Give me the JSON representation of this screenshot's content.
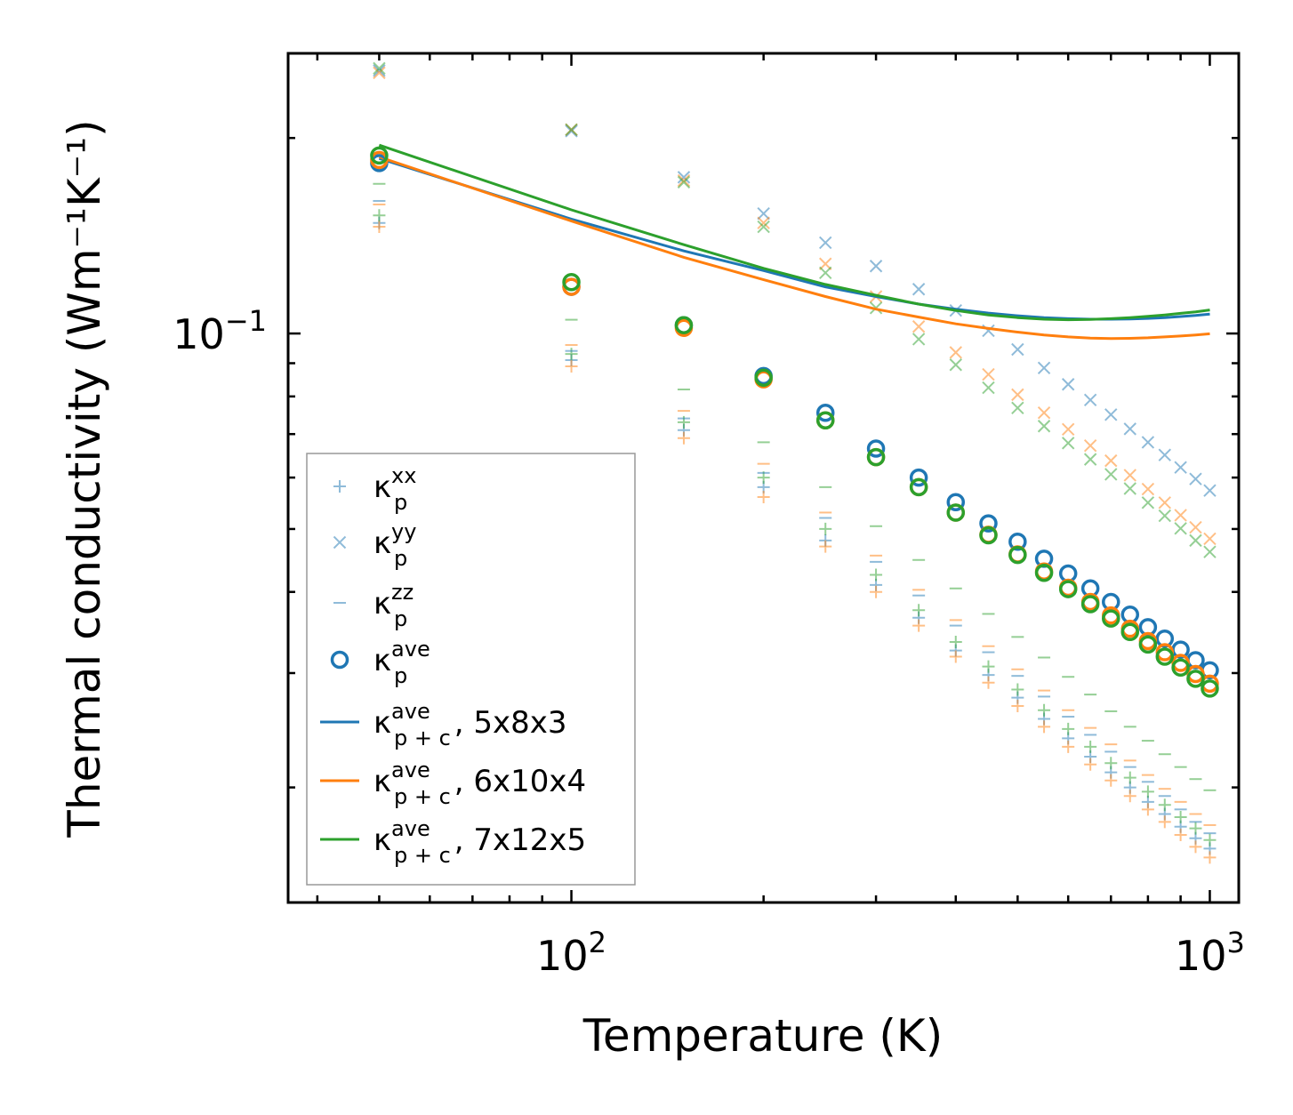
{
  "chart_data": {
    "type": "scatter",
    "title": "",
    "xlabel": "Temperature (K)",
    "ylabel": "Thermal conductivity (Wm⁻¹K⁻¹)",
    "xscale": "log",
    "yscale": "log",
    "xlim": [
      36,
      1110
    ],
    "ylim": [
      0.0133,
      0.27
    ],
    "x_ticks": [
      {
        "value": 100,
        "base": "10",
        "exp": "2"
      },
      {
        "value": 1000,
        "base": "10",
        "exp": "3"
      }
    ],
    "y_ticks": [
      {
        "value": 0.1,
        "base": "10",
        "exp": "−1"
      }
    ],
    "legend_position": "lower-left",
    "colors": {
      "blue": "#1f77b4",
      "orange": "#ff7f0e",
      "green": "#2ca02c"
    },
    "legend": [
      {
        "symbol": "plus",
        "base": "κ",
        "sub": "p",
        "sup": "xx",
        "suffix": ""
      },
      {
        "symbol": "cross",
        "base": "κ",
        "sub": "p",
        "sup": "yy",
        "suffix": ""
      },
      {
        "symbol": "dash",
        "base": "κ",
        "sub": "p",
        "sup": "zz",
        "suffix": ""
      },
      {
        "symbol": "circle",
        "base": "κ",
        "sub": "p",
        "sup": "ave",
        "suffix": ""
      },
      {
        "symbol": "line-blue",
        "base": "κ",
        "sub": "p + c",
        "sup": "ave",
        "suffix": ", 5x8x3"
      },
      {
        "symbol": "line-orange",
        "base": "κ",
        "sub": "p + c",
        "sup": "ave",
        "suffix": ", 6x10x4"
      },
      {
        "symbol": "line-green",
        "base": "κ",
        "sub": "p + c",
        "sup": "ave",
        "suffix": ", 7x12x5"
      }
    ],
    "x": [
      50,
      100,
      150,
      200,
      250,
      300,
      350,
      400,
      450,
      500,
      550,
      600,
      650,
      700,
      750,
      800,
      850,
      900,
      950,
      1000
    ],
    "series": [
      {
        "name": "kxx 5x8x3",
        "marker": "plus",
        "color": "#1f77b4",
        "values": [
          0.148,
          0.091,
          0.071,
          0.058,
          0.048,
          0.041,
          0.0365,
          0.0325,
          0.0298,
          0.0275,
          0.0255,
          0.0238,
          0.0223,
          0.0211,
          0.02,
          0.019,
          0.0182,
          0.0174,
          0.0167,
          0.0161
        ]
      },
      {
        "name": "kxx 6x10x4",
        "marker": "plus",
        "color": "#ff7f0e",
        "values": [
          0.146,
          0.089,
          0.069,
          0.056,
          0.047,
          0.04,
          0.0355,
          0.0318,
          0.029,
          0.0267,
          0.0248,
          0.0231,
          0.0217,
          0.0205,
          0.0194,
          0.0185,
          0.0177,
          0.0169,
          0.0162,
          0.0156
        ]
      },
      {
        "name": "kxx 7x12x5",
        "marker": "plus",
        "color": "#2ca02c",
        "values": [
          0.152,
          0.093,
          0.073,
          0.06,
          0.05,
          0.0425,
          0.0375,
          0.0335,
          0.0307,
          0.0283,
          0.0263,
          0.0246,
          0.0231,
          0.0218,
          0.0207,
          0.0197,
          0.0188,
          0.018,
          0.0173,
          0.0166
        ]
      },
      {
        "name": "kyy 5x8x3",
        "marker": "cross",
        "color": "#1f77b4",
        "values": [
          0.254,
          0.205,
          0.174,
          0.153,
          0.138,
          0.127,
          0.117,
          0.1085,
          0.101,
          0.0945,
          0.0885,
          0.0835,
          0.079,
          0.075,
          0.0713,
          0.068,
          0.065,
          0.0622,
          0.0597,
          0.0573
        ]
      },
      {
        "name": "kyy 6x10x4",
        "marker": "cross",
        "color": "#ff7f0e",
        "values": [
          0.252,
          0.206,
          0.172,
          0.148,
          0.128,
          0.114,
          0.1025,
          0.0935,
          0.0865,
          0.0805,
          0.0755,
          0.0712,
          0.0672,
          0.0637,
          0.0605,
          0.0576,
          0.0549,
          0.0525,
          0.0503,
          0.0483
        ]
      },
      {
        "name": "kyy 7x12x5",
        "marker": "cross",
        "color": "#2ca02c",
        "values": [
          0.256,
          0.206,
          0.171,
          0.146,
          0.124,
          0.1095,
          0.098,
          0.0895,
          0.0825,
          0.0768,
          0.072,
          0.0678,
          0.064,
          0.0607,
          0.0577,
          0.0549,
          0.0524,
          0.0501,
          0.048,
          0.0461
        ]
      },
      {
        "name": "kzz 5x8x3",
        "marker": "dash",
        "color": "#1f77b4",
        "values": [
          0.16,
          0.094,
          0.074,
          0.061,
          0.052,
          0.0445,
          0.0395,
          0.0355,
          0.0323,
          0.0297,
          0.0276,
          0.0257,
          0.0241,
          0.0227,
          0.0215,
          0.0204,
          0.0194,
          0.0185,
          0.0177,
          0.017
        ]
      },
      {
        "name": "kzz 6x10x4",
        "marker": "dash",
        "color": "#ff7f0e",
        "values": [
          0.158,
          0.096,
          0.076,
          0.063,
          0.053,
          0.0455,
          0.0403,
          0.0362,
          0.033,
          0.0304,
          0.0282,
          0.0263,
          0.0247,
          0.0233,
          0.022,
          0.0209,
          0.0199,
          0.019,
          0.0182,
          0.0175
        ]
      },
      {
        "name": "kzz 7x12x5",
        "marker": "dash",
        "color": "#2ca02c",
        "values": [
          0.17,
          0.105,
          0.082,
          0.068,
          0.058,
          0.0505,
          0.0448,
          0.0405,
          0.037,
          0.0341,
          0.0317,
          0.0296,
          0.0278,
          0.0262,
          0.0248,
          0.0236,
          0.0225,
          0.0215,
          0.0206,
          0.0198
        ]
      },
      {
        "name": "kave 5x8x3",
        "marker": "circle",
        "color": "#1f77b4",
        "values": [
          0.183,
          0.118,
          0.103,
          0.086,
          0.0755,
          0.0665,
          0.06,
          0.055,
          0.051,
          0.0478,
          0.045,
          0.0427,
          0.0405,
          0.0386,
          0.0369,
          0.0353,
          0.0339,
          0.0326,
          0.0314,
          0.0303
        ]
      },
      {
        "name": "kave 6x10x4",
        "marker": "circle",
        "color": "#ff7f0e",
        "values": [
          0.185,
          0.118,
          0.102,
          0.085,
          0.0735,
          0.0645,
          0.058,
          0.053,
          0.049,
          0.0457,
          0.043,
          0.0406,
          0.0386,
          0.0368,
          0.0351,
          0.0336,
          0.0323,
          0.0311,
          0.0299,
          0.0289
        ]
      },
      {
        "name": "kave 7x12x5",
        "marker": "circle",
        "color": "#2ca02c",
        "values": [
          0.188,
          0.12,
          0.103,
          0.0855,
          0.0735,
          0.0645,
          0.058,
          0.053,
          0.0489,
          0.0456,
          0.0428,
          0.0404,
          0.0383,
          0.0364,
          0.0347,
          0.0332,
          0.0318,
          0.0306,
          0.0294,
          0.0284
        ]
      },
      {
        "name": "kave p+c 5x8x3",
        "marker": "line",
        "color": "#1f77b4",
        "values": [
          0.186,
          0.15,
          0.134,
          0.125,
          0.118,
          0.114,
          0.111,
          0.109,
          0.1075,
          0.1065,
          0.1058,
          0.1054,
          0.1052,
          0.1052,
          0.1053,
          0.1055,
          0.1058,
          0.1062,
          0.1066,
          0.1071
        ]
      },
      {
        "name": "kave p+c 6x10x4",
        "marker": "line",
        "color": "#ff7f0e",
        "values": [
          0.187,
          0.149,
          0.131,
          0.121,
          0.114,
          0.109,
          0.106,
          0.1035,
          0.1018,
          0.1005,
          0.0995,
          0.0988,
          0.0984,
          0.0982,
          0.0983,
          0.0985,
          0.0988,
          0.0991,
          0.0995,
          0.0999
        ]
      },
      {
        "name": "kave p+c 7x12x5",
        "marker": "line",
        "color": "#2ca02c",
        "values": [
          0.195,
          0.155,
          0.137,
          0.126,
          0.119,
          0.1145,
          0.111,
          0.1085,
          0.1068,
          0.1058,
          0.1052,
          0.105,
          0.1051,
          0.1054,
          0.1058,
          0.1063,
          0.1068,
          0.1074,
          0.108,
          0.1087
        ]
      }
    ]
  }
}
